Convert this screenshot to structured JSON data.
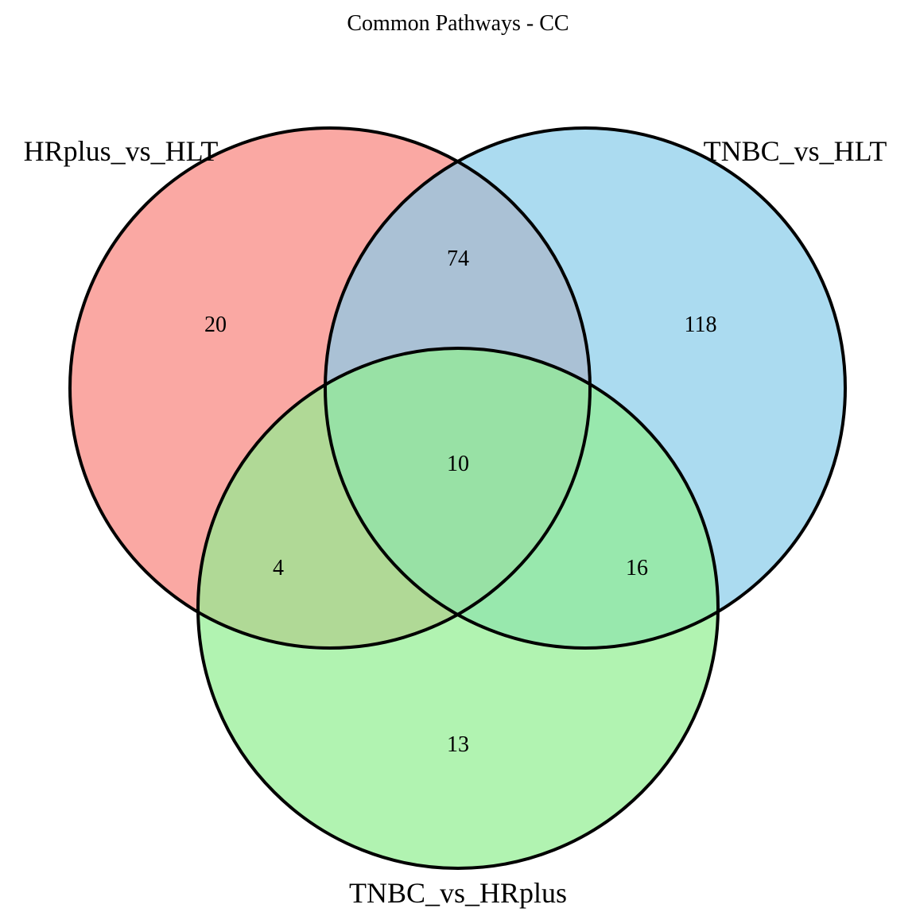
{
  "title": "Common Pathways - CC",
  "sets": [
    {
      "key": "a",
      "name": "HRplus_vs_HLT",
      "color": "#f8837c"
    },
    {
      "key": "b",
      "name": "TNBC_vs_HLT",
      "color": "#87ccea"
    },
    {
      "key": "c",
      "name": "TNBC_vs_HRplus",
      "color": "#90ee90"
    }
  ],
  "regions": {
    "a_only": "20",
    "b_only": "118",
    "c_only": "13",
    "ab": "74",
    "ac": "4",
    "bc": "16",
    "abc": "10"
  },
  "style": {
    "fill_opacity": 0.7,
    "outline_color": "#000000"
  }
}
